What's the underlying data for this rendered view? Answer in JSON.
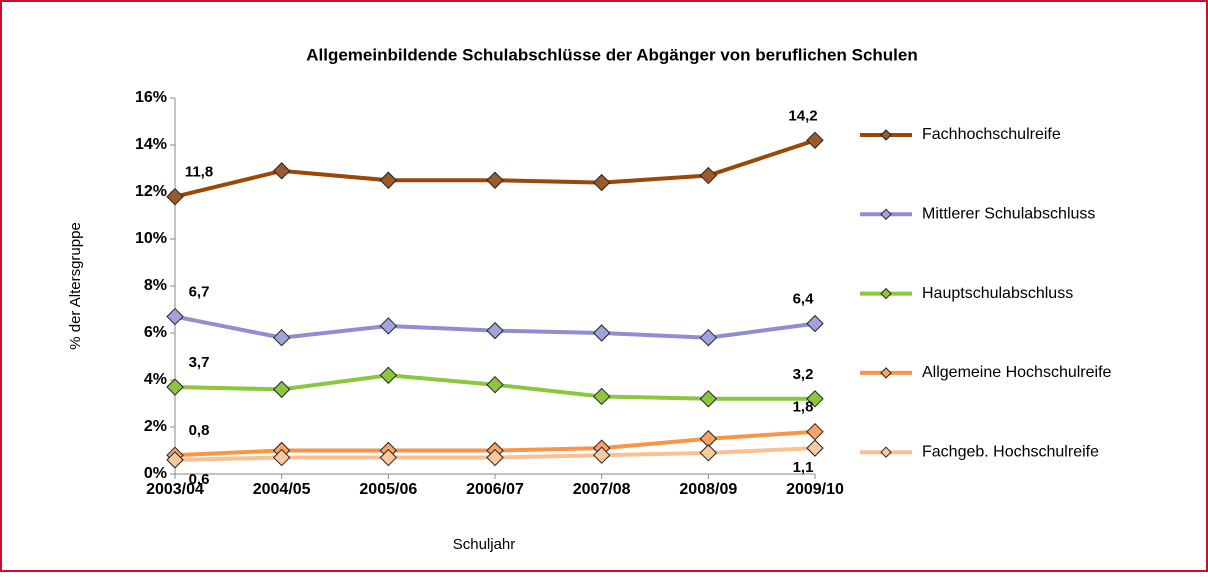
{
  "chart_data": {
    "type": "line",
    "title": "Allgemeinbildende Schulabschlüsse der Abgänger von beruflichen Schulen",
    "x_label": "Schuljahr",
    "y_label": "% der Altersgruppe",
    "categories": [
      "2003/04",
      "2004/05",
      "2005/06",
      "2006/07",
      "2007/08",
      "2008/09",
      "2009/10"
    ],
    "ylim": [
      0,
      16
    ],
    "yticks": [
      {
        "value": 0,
        "label": "0%"
      },
      {
        "value": 2,
        "label": "2%"
      },
      {
        "value": 4,
        "label": "4%"
      },
      {
        "value": 6,
        "label": "6%"
      },
      {
        "value": 8,
        "label": "8%"
      },
      {
        "value": 10,
        "label": "10%"
      },
      {
        "value": 12,
        "label": "12%"
      },
      {
        "value": 14,
        "label": "14%"
      },
      {
        "value": 16,
        "label": "16%"
      }
    ],
    "grid": false,
    "legend": "right",
    "series": [
      {
        "name": "Fachhochschulreife",
        "color": "#984807",
        "marker": "#9a5a2e",
        "values": [
          11.8,
          12.9,
          12.5,
          12.5,
          12.4,
          12.7,
          14.2
        ],
        "value_labels": [
          "11,8",
          null,
          null,
          null,
          null,
          null,
          "14,2"
        ]
      },
      {
        "name": "Mittlerer Schulabschluss",
        "color": "#8e8ed0",
        "marker": "#a3a3db",
        "values": [
          6.7,
          5.8,
          6.3,
          6.1,
          6.0,
          5.8,
          6.4
        ],
        "value_labels": [
          "6,7",
          null,
          null,
          null,
          null,
          null,
          "6,4"
        ]
      },
      {
        "name": "Hauptschulabschluss",
        "color": "#8cc63f",
        "marker": "#8cc63f",
        "values": [
          3.7,
          3.6,
          4.2,
          3.8,
          3.3,
          3.2,
          3.2
        ],
        "value_labels": [
          "3,7",
          null,
          null,
          null,
          null,
          null,
          "3,2"
        ]
      },
      {
        "name": "Allgemeine Hochschulreife",
        "color": "#f79646",
        "marker": "#f7a365",
        "values": [
          0.8,
          1.0,
          1.0,
          1.0,
          1.1,
          1.5,
          1.8
        ],
        "value_labels": [
          "0,8",
          null,
          null,
          null,
          null,
          null,
          "1,8"
        ]
      },
      {
        "name": "Fachgeb. Hochschulreife",
        "color": "#fac090",
        "marker": "#fbc9a0",
        "values": [
          0.6,
          0.7,
          0.7,
          0.7,
          0.8,
          0.9,
          1.1
        ],
        "value_labels": [
          "0,6",
          null,
          null,
          null,
          null,
          null,
          "1,1"
        ]
      }
    ]
  }
}
